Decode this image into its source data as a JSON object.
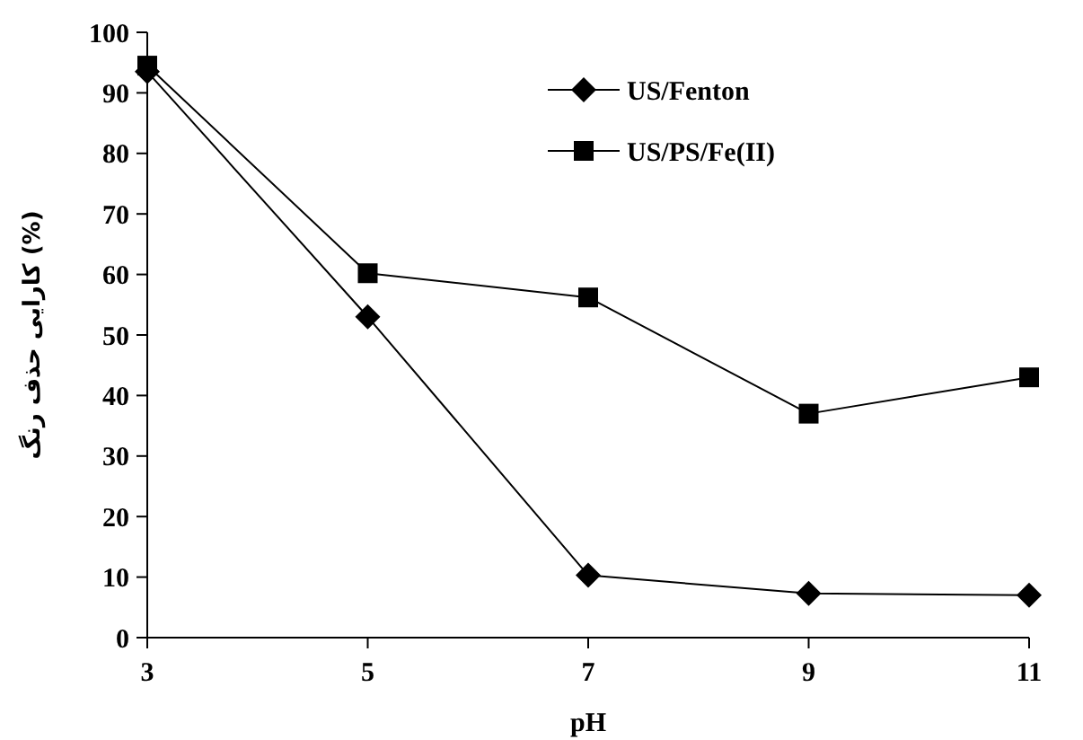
{
  "chart_data": {
    "type": "line",
    "xlabel": "pH",
    "ylabel": "کارایی حذف رنگ (%)",
    "x": [
      3,
      5,
      7,
      9,
      11
    ],
    "xlim": [
      3,
      11
    ],
    "xticks": [
      3,
      5,
      7,
      9,
      11
    ],
    "ylim": [
      0,
      100
    ],
    "yticks": [
      0,
      10,
      20,
      30,
      40,
      50,
      60,
      70,
      80,
      90,
      100
    ],
    "grid": false,
    "legend": "top right",
    "line_style": "solid",
    "series": [
      {
        "name": "US/Fenton",
        "color": "#000000",
        "marker": "diamond",
        "values": [
          93.5,
          53,
          10.3,
          7.3,
          7
        ]
      },
      {
        "name": "US/PS/Fe(II)",
        "color": "#000000",
        "marker": "square",
        "values": [
          94.5,
          60.2,
          56.2,
          37,
          43
        ]
      }
    ]
  }
}
